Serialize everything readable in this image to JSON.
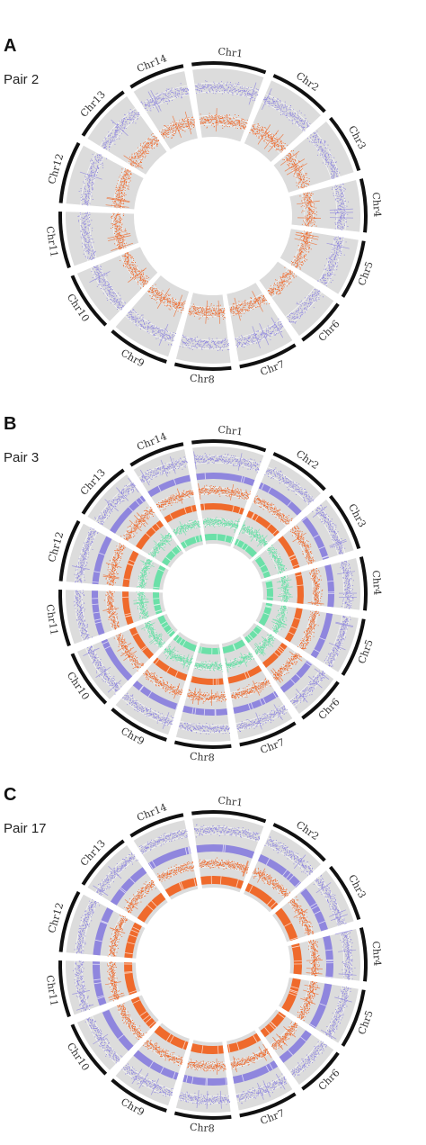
{
  "chromosomes": [
    "Chr1",
    "Chr2",
    "Chr3",
    "Chr4",
    "Chr5",
    "Chr6",
    "Chr7",
    "Chr8",
    "Chr9",
    "Chr10",
    "Chr11",
    "Chr12",
    "Chr13",
    "Chr14"
  ],
  "colors": {
    "background": "#dcdcdc",
    "outer_ring": "#111111",
    "purple": "#8f86de",
    "orange": "#ef6a2c",
    "green": "#6be0a8",
    "gap": "#ffffff"
  },
  "panels": [
    {
      "letter": "A",
      "pair_label": "Pair 2",
      "tracks": [
        "purple-scatter",
        "orange-scatter"
      ]
    },
    {
      "letter": "B",
      "pair_label": "Pair 3",
      "tracks": [
        "purple-scatter",
        "purple-bar",
        "orange-scatter",
        "orange-bar",
        "green-scatter",
        "green-bar"
      ]
    },
    {
      "letter": "C",
      "pair_label": "Pair 17",
      "tracks": [
        "purple-scatter",
        "purple-bar",
        "orange-scatter",
        "orange-bar"
      ]
    }
  ]
}
